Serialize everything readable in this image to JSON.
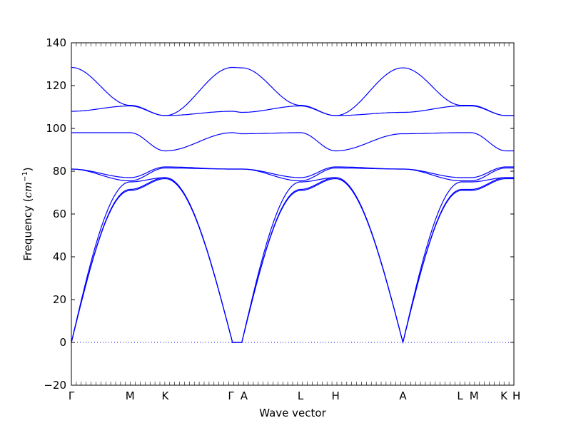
{
  "chart_data": {
    "type": "line",
    "title": "",
    "xlabel": "Wave vector",
    "ylabel": {
      "prefix": "Frequency (",
      "unit_base": "cm",
      "unit_exp": "−1",
      "suffix": ")"
    },
    "ylim": [
      -20,
      140
    ],
    "yticks": [
      -20,
      0,
      20,
      40,
      60,
      80,
      100,
      120,
      140
    ],
    "xlim": [
      0,
      6.18
    ],
    "high_symmetry_points": [
      {
        "label": "Γ",
        "x": 0.0
      },
      {
        "label": "M",
        "x": 0.82
      },
      {
        "label": "K",
        "x": 1.31
      },
      {
        "label": "Γ",
        "x": 2.25
      },
      {
        "label": "A",
        "x": 2.38
      },
      {
        "label": "L",
        "x": 3.2
      },
      {
        "label": "H",
        "x": 3.69
      },
      {
        "label": "A",
        "x": 4.63
      },
      {
        "label": "L",
        "x": 5.45
      },
      {
        "label": "M",
        "x": 5.58
      },
      {
        "label": "K",
        "x": 6.07
      },
      {
        "label": "H",
        "x": 6.18
      }
    ],
    "segments": [
      {
        "x0": 0.0,
        "x1": 0.82,
        "from": "Γ",
        "to": "M"
      },
      {
        "x0": 0.82,
        "x1": 1.31,
        "from": "M",
        "to": "K"
      },
      {
        "x0": 1.31,
        "x1": 2.25,
        "from": "K",
        "to": "Γ"
      },
      {
        "x0": 2.25,
        "x1": 2.38,
        "from": "Γ",
        "to": "A"
      },
      {
        "x0": 2.38,
        "x1": 3.2,
        "from": "A",
        "to": "L"
      },
      {
        "x0": 3.2,
        "x1": 3.69,
        "from": "L",
        "to": "H"
      },
      {
        "x0": 3.69,
        "x1": 4.63,
        "from": "H",
        "to": "A"
      },
      {
        "x0": 4.63,
        "x1": 5.45,
        "from": "A",
        "to": "L"
      },
      {
        "x0": 5.45,
        "x1": 5.58,
        "from": "L",
        "to": "M"
      },
      {
        "x0": 5.58,
        "x1": 6.07,
        "from": "M",
        "to": "K"
      },
      {
        "x0": 6.07,
        "x1": 6.18,
        "from": "K",
        "to": "H"
      }
    ],
    "bands_at_points": {
      "Γ": [
        0,
        0,
        0,
        81,
        81,
        98,
        108,
        128.5
      ],
      "M": [
        71,
        71.5,
        75,
        75.5,
        77,
        98,
        110.5,
        110.8
      ],
      "K": [
        76.5,
        77,
        77,
        81.5,
        82,
        89.5,
        106,
        106
      ],
      "A": [
        0,
        0,
        0,
        81,
        81,
        97.5,
        107.5,
        128.3
      ],
      "L": [
        71,
        71.5,
        75,
        75.5,
        77,
        98,
        110.5,
        110.8
      ],
      "H": [
        76.5,
        77,
        77,
        81.5,
        82,
        89.5,
        106,
        106
      ]
    },
    "zero_line": 0,
    "zero_line_style": "dotted",
    "grid": false,
    "legend": "none",
    "line_color": "#0000ff"
  }
}
